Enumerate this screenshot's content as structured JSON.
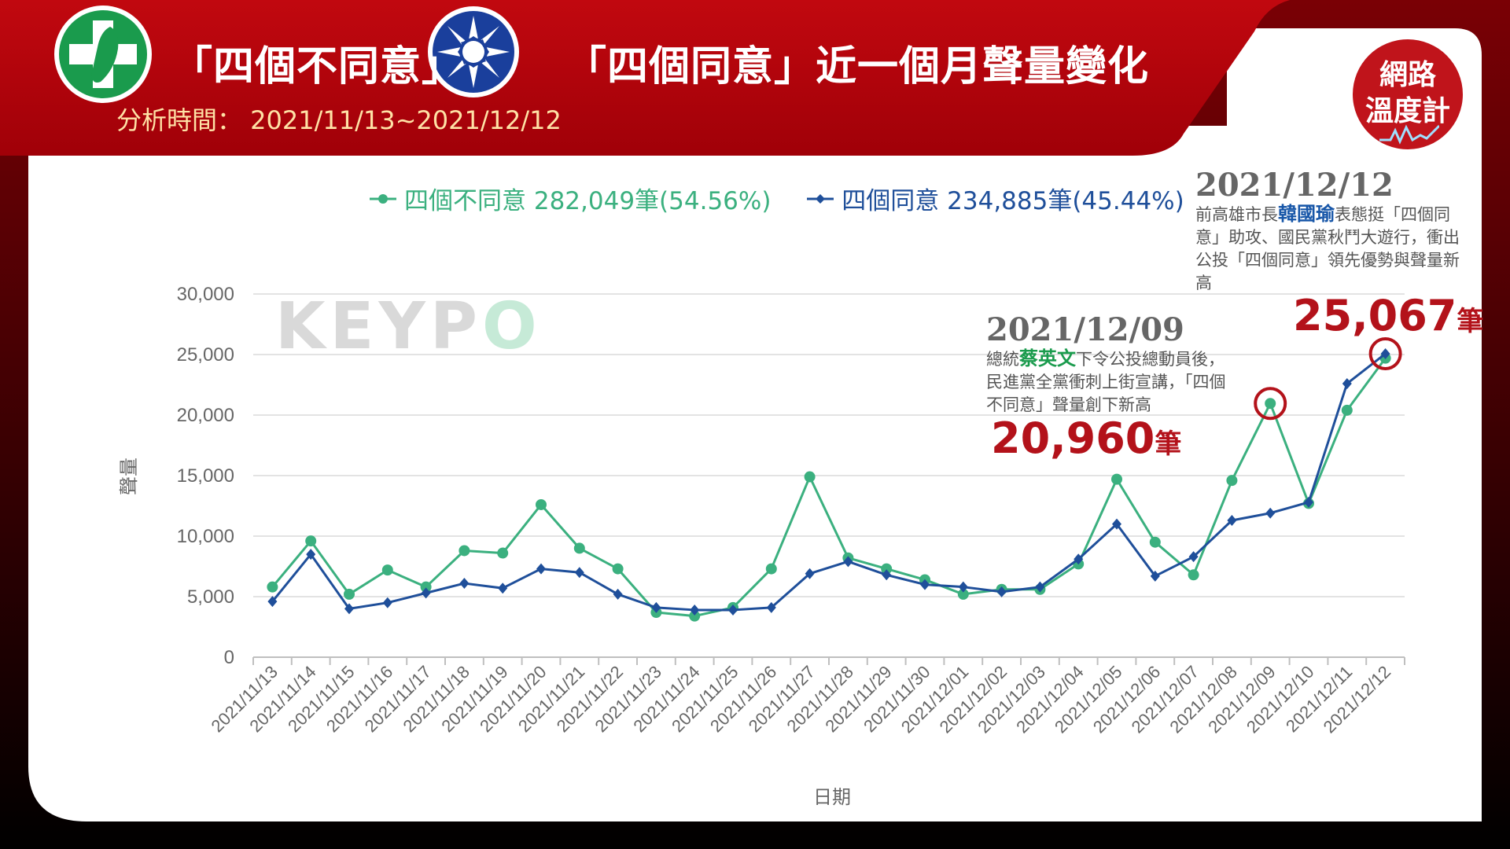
{
  "header": {
    "title_a": "「四個不同意」",
    "title_b": "「四個同意」近一個月聲量變化",
    "subtitle": "分析時間： 2021/11/13~2021/12/12",
    "badge_line1": "網路",
    "badge_line2": "溫度計"
  },
  "watermark": {
    "text": "KEYP",
    "text_o": "O"
  },
  "colors": {
    "header_red": "#b8070f",
    "green": "#3bb07f",
    "blue": "#1f4f9a",
    "highlight_red": "#b3121a"
  },
  "legend": [
    {
      "label": "四個不同意 282,049筆(54.56%)",
      "color": "#3bb07f",
      "marker": "circle"
    },
    {
      "label": "四個同意 234,885筆(45.44%)",
      "color": "#1f4f9a",
      "marker": "diamond"
    }
  ],
  "annotations": {
    "a1": {
      "date": "2021/12/09",
      "text_pre": "總統",
      "text_hl": "蔡英文",
      "text_post": "下令公投總動員後，民進黨全黨衝刺上街宣講，「四個不同意」聲量創下新高",
      "value": "20,960",
      "unit": "筆"
    },
    "a2": {
      "date": "2021/12/12",
      "text_pre": "前高雄市長",
      "text_hl": "韓國瑜",
      "text_post": "表態挺「四個同意」助攻、國民黨秋鬥大遊行，衝出公投「四個同意」領先優勢與聲量新高",
      "value": "25,067",
      "unit": "筆"
    }
  },
  "chart_data": {
    "type": "line",
    "xlabel": "日期",
    "ylabel": "聲量",
    "ylim": [
      0,
      30000
    ],
    "yticks": [
      0,
      5000,
      10000,
      15000,
      20000,
      25000,
      30000
    ],
    "ytick_labels": [
      "0",
      "5,000",
      "10,000",
      "15,000",
      "20,000",
      "25,000",
      "30,000"
    ],
    "grid": true,
    "legend_position": "top",
    "categories": [
      "2021/11/13",
      "2021/11/14",
      "2021/11/15",
      "2021/11/16",
      "2021/11/17",
      "2021/11/18",
      "2021/11/19",
      "2021/11/20",
      "2021/11/21",
      "2021/11/22",
      "2021/11/23",
      "2021/11/24",
      "2021/11/25",
      "2021/11/26",
      "2021/11/27",
      "2021/11/28",
      "2021/11/29",
      "2021/11/30",
      "2021/12/01",
      "2021/12/02",
      "2021/12/03",
      "2021/12/04",
      "2021/12/05",
      "2021/12/06",
      "2021/12/07",
      "2021/12/08",
      "2021/12/09",
      "2021/12/10",
      "2021/12/11",
      "2021/12/12"
    ],
    "series": [
      {
        "name": "四個不同意",
        "color": "#3bb07f",
        "marker": "circle",
        "values": [
          5800,
          9600,
          5200,
          7200,
          5800,
          8800,
          8600,
          12600,
          9000,
          7300,
          3700,
          3400,
          4100,
          7300,
          14900,
          8200,
          7300,
          6400,
          5200,
          5600,
          5600,
          7700,
          14700,
          9500,
          6800,
          14600,
          20960,
          12700,
          20400,
          24700
        ]
      },
      {
        "name": "四個同意",
        "color": "#1f4f9a",
        "marker": "diamond",
        "values": [
          4600,
          8500,
          4000,
          4500,
          5300,
          6100,
          5700,
          7300,
          7000,
          5200,
          4100,
          3900,
          3900,
          4100,
          6900,
          7900,
          6800,
          6000,
          5800,
          5400,
          5800,
          8100,
          11000,
          6700,
          8300,
          11300,
          11900,
          12800,
          22600,
          25067
        ]
      }
    ],
    "highlights": [
      {
        "series": "四個不同意",
        "x": "2021/12/09",
        "y": 20960
      },
      {
        "series": "四個同意",
        "x": "2021/12/12",
        "y": 25067
      }
    ]
  }
}
